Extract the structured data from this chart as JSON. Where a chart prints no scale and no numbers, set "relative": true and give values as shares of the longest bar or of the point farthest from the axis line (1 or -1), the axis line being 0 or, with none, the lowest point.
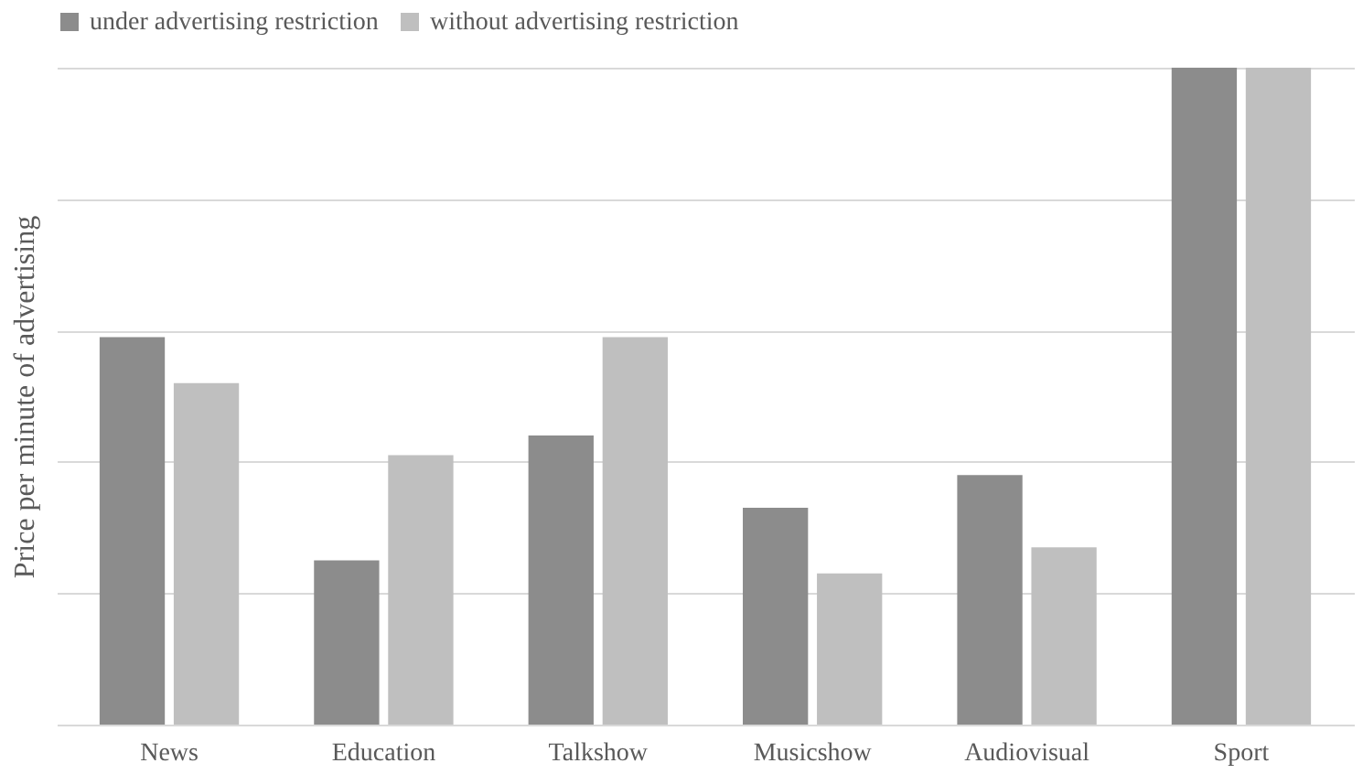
{
  "chart_data": {
    "type": "bar",
    "relative": true,
    "ylabel": "Price per minute of advertising",
    "categories": [
      "News",
      "Education",
      "Talkshow",
      "Musicshow",
      "Audiovisual",
      "Sport"
    ],
    "series": [
      {
        "name": "under advertising restriction",
        "color": "#8c8c8c",
        "values": [
          0.59,
          0.25,
          0.44,
          0.33,
          0.38,
          1
        ]
      },
      {
        "name": "without advertising restriction",
        "color": "#bfbfbf",
        "values": [
          0.52,
          0.41,
          0.59,
          0.23,
          0.27,
          1
        ]
      }
    ],
    "grid": true,
    "legend": "top"
  }
}
